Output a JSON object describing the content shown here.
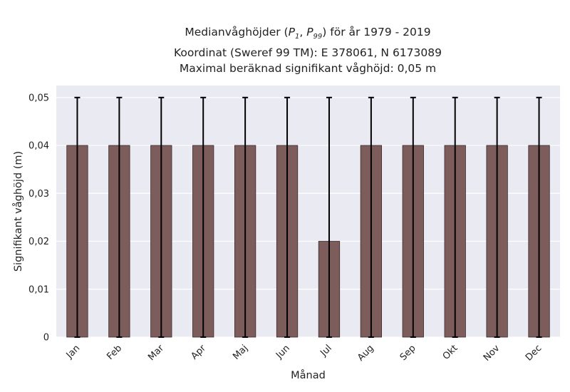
{
  "title": {
    "line1_prefix": "Medianvåghöjder (",
    "p1_sym": "P",
    "p1_sub": "1",
    "p_sep": ", ",
    "p2_sym": "P",
    "p2_sub": "99",
    "line1_suffix": ") för år 1979 - 2019",
    "line2": "Koordinat (Sweref 99 TM): E 378061, N 6173089",
    "line3": "Maximal beräknad signifikant våghöjd: 0,05 m"
  },
  "colors": {
    "plot_bg": "#eaeaf2",
    "grid": "#ffffff",
    "bar_fill": "#7d5c5c",
    "bar_edge": "#3a2a2a",
    "errorbar": "#000000"
  },
  "chart_data": {
    "type": "bar",
    "categories": [
      "Jan",
      "Feb",
      "Mar",
      "Apr",
      "Maj",
      "Jun",
      "Jul",
      "Aug",
      "Sep",
      "Okt",
      "Nov",
      "Dec"
    ],
    "values": [
      0.04,
      0.04,
      0.04,
      0.04,
      0.04,
      0.04,
      0.02,
      0.04,
      0.04,
      0.04,
      0.04,
      0.04
    ],
    "error_low": [
      0,
      0,
      0,
      0,
      0,
      0,
      0,
      0,
      0,
      0,
      0,
      0
    ],
    "error_high": [
      0.05,
      0.05,
      0.05,
      0.05,
      0.05,
      0.05,
      0.05,
      0.05,
      0.05,
      0.05,
      0.05,
      0.05
    ],
    "xlabel": "Månad",
    "ylabel": "Signifikant våghöjd (m)",
    "ylim": [
      0,
      0.0525
    ],
    "yticks": [
      0,
      0.01,
      0.02,
      0.03,
      0.04,
      0.05
    ],
    "ytick_labels": [
      "0",
      "0,01",
      "0,02",
      "0,03",
      "0,04",
      "0,05"
    ],
    "grid": true,
    "legend": "none"
  }
}
